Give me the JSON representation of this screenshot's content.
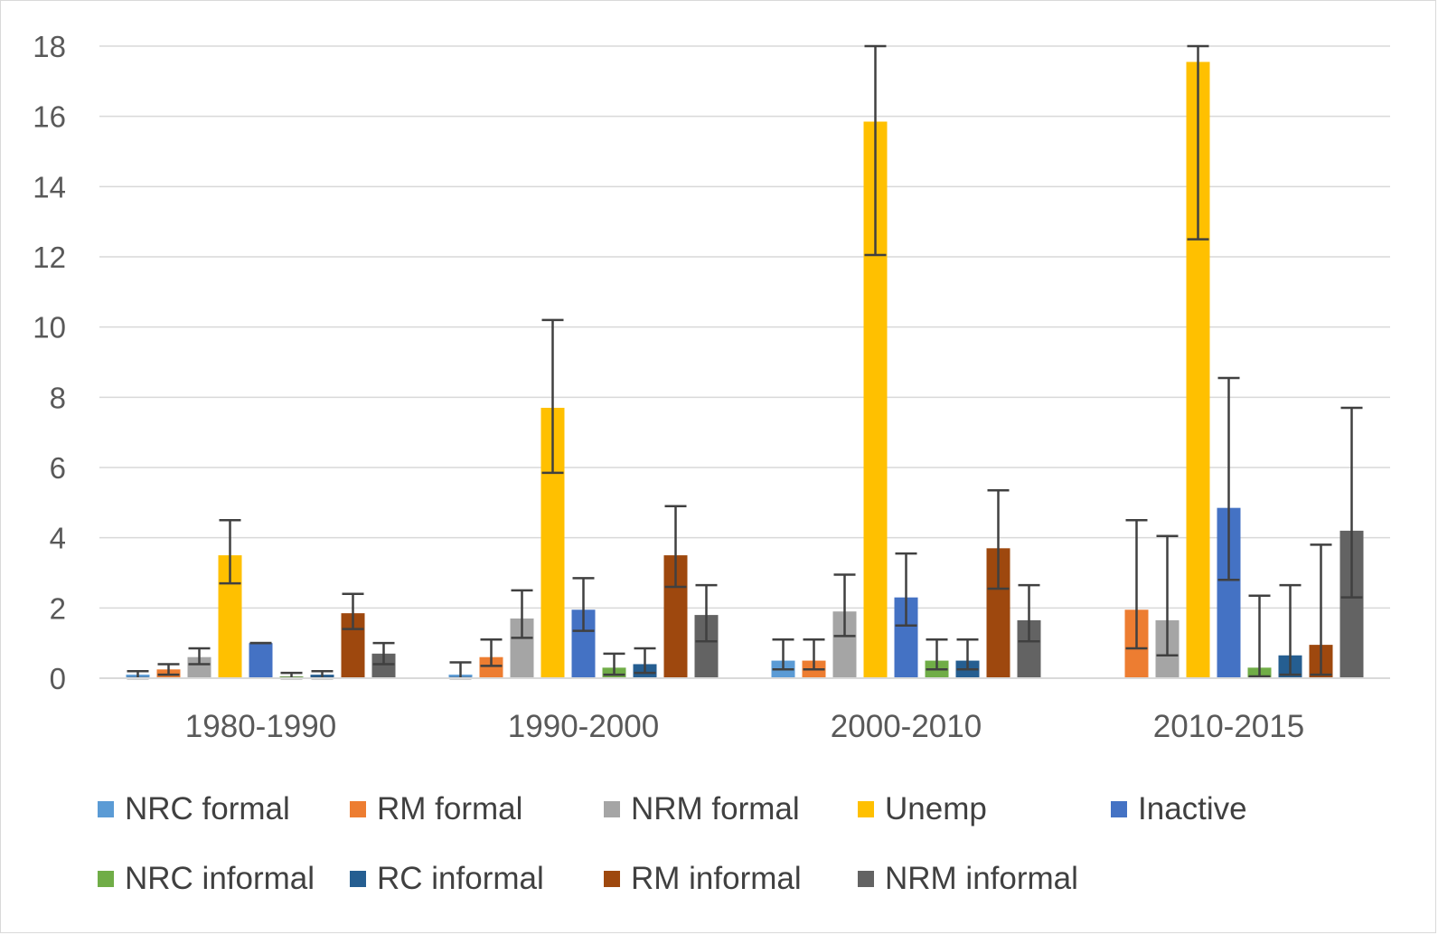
{
  "chart_data": {
    "type": "bar",
    "title": "",
    "xlabel": "",
    "ylabel": "",
    "ylim": [
      0,
      18
    ],
    "yticks": [
      0,
      2,
      4,
      6,
      8,
      10,
      12,
      14,
      16,
      18
    ],
    "grid": true,
    "legend_position": "bottom",
    "categories": [
      "1980-1990",
      "1990-2000",
      "2000-2010",
      "2010-2015"
    ],
    "series": [
      {
        "name": "NRC formal",
        "color": "#5B9BD5",
        "values": [
          0.1,
          0.1,
          0.5,
          null
        ],
        "error_low": [
          0.0,
          0.0,
          0.25,
          null
        ],
        "error_high": [
          0.2,
          0.45,
          1.1,
          null
        ]
      },
      {
        "name": "RM formal",
        "color": "#ED7D31",
        "values": [
          0.25,
          0.6,
          0.5,
          1.95
        ],
        "error_low": [
          0.1,
          0.35,
          0.25,
          0.85
        ],
        "error_high": [
          0.4,
          1.1,
          1.1,
          4.5
        ]
      },
      {
        "name": "NRM formal",
        "color": "#A5A5A5",
        "values": [
          0.6,
          1.7,
          1.9,
          1.65
        ],
        "error_low": [
          0.4,
          1.15,
          1.2,
          0.65
        ],
        "error_high": [
          0.85,
          2.5,
          2.95,
          4.05
        ]
      },
      {
        "name": "Unemp",
        "color": "#FFC000",
        "values": [
          3.5,
          7.7,
          15.85,
          17.55
        ],
        "error_low": [
          2.7,
          5.85,
          12.05,
          12.5
        ],
        "error_high": [
          4.5,
          10.2,
          18.0,
          18.0
        ]
      },
      {
        "name": "Inactive",
        "color": "#4472C4",
        "values": [
          1.0,
          1.95,
          2.3,
          4.85
        ],
        "error_low": [
          1.0,
          1.35,
          1.5,
          2.8
        ],
        "error_high": [
          1.0,
          2.85,
          3.55,
          8.55
        ]
      },
      {
        "name": "NRC informal",
        "color": "#70AD47",
        "values": [
          0.05,
          0.3,
          0.5,
          0.3
        ],
        "error_low": [
          0.0,
          0.1,
          0.25,
          0.05
        ],
        "error_high": [
          0.15,
          0.7,
          1.1,
          2.35
        ]
      },
      {
        "name": "RC informal",
        "color": "#255E91",
        "values": [
          0.1,
          0.4,
          0.5,
          0.65
        ],
        "error_low": [
          0.0,
          0.15,
          0.25,
          0.1
        ],
        "error_high": [
          0.2,
          0.85,
          1.1,
          2.65
        ]
      },
      {
        "name": "RM informal",
        "color": "#9E480E",
        "values": [
          1.85,
          3.5,
          3.7,
          0.95
        ],
        "error_low": [
          1.4,
          2.6,
          2.55,
          0.1
        ],
        "error_high": [
          2.4,
          4.9,
          5.35,
          3.8
        ]
      },
      {
        "name": "NRM informal",
        "color": "#636363",
        "values": [
          0.7,
          1.8,
          1.65,
          4.2
        ],
        "error_low": [
          0.4,
          1.05,
          1.05,
          2.3
        ],
        "error_high": [
          1.0,
          2.65,
          2.65,
          7.7
        ]
      }
    ]
  }
}
